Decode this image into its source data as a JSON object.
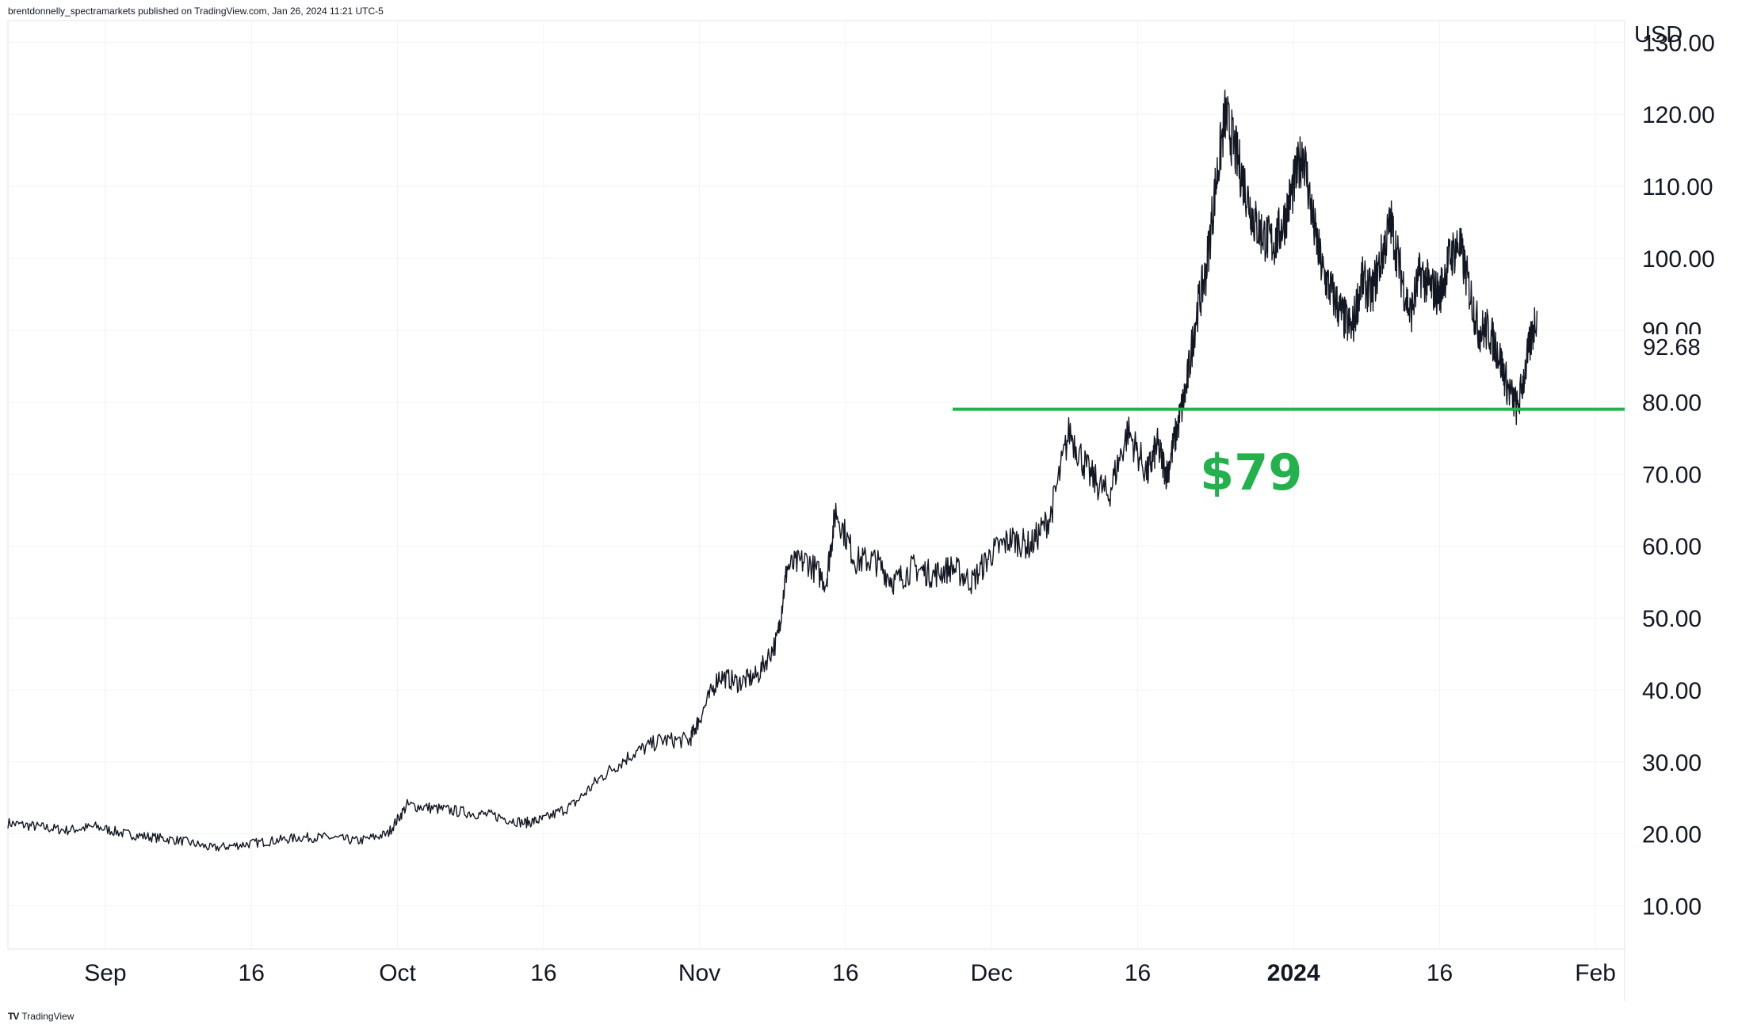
{
  "header": {
    "text": "brentdonnelly_spectramarkets published on TradingView.com, Jan 26, 2024 11:21 UTC-5"
  },
  "footer": {
    "brand": "TradingView",
    "logo_glyph": "TV"
  },
  "axis": {
    "currency": "USD"
  },
  "price_label": {
    "value": "92.68"
  },
  "annotation": {
    "text": "$79",
    "color": "#22b14c"
  },
  "colors": {
    "line": "#131722",
    "grid": "#f0f3fa",
    "support": "#22b14c",
    "axis_text": "#131722"
  },
  "chart_data": {
    "type": "line",
    "title": "",
    "xlabel": "",
    "ylabel": "",
    "currency": "USD",
    "ylim": [
      4,
      133
    ],
    "yticks": [
      10,
      20,
      30,
      40,
      50,
      60,
      70,
      80,
      90,
      100,
      110,
      120,
      130
    ],
    "ytick_labels": [
      "10.00",
      "20.00",
      "30.00",
      "40.00",
      "50.00",
      "60.00",
      "70.00",
      "80.00",
      "90.00",
      "100.00",
      "110.00",
      "120.00",
      "130.00"
    ],
    "xlim": [
      "2023-08-22",
      "2024-02-04"
    ],
    "xticks": [
      {
        "date": "2023-09-01",
        "label": "Sep",
        "bold": false
      },
      {
        "date": "2023-09-16",
        "label": "16",
        "bold": false
      },
      {
        "date": "2023-10-01",
        "label": "Oct",
        "bold": false
      },
      {
        "date": "2023-10-16",
        "label": "16",
        "bold": false
      },
      {
        "date": "2023-11-01",
        "label": "Nov",
        "bold": false
      },
      {
        "date": "2023-11-16",
        "label": "16",
        "bold": false
      },
      {
        "date": "2023-12-01",
        "label": "Dec",
        "bold": false
      },
      {
        "date": "2023-12-16",
        "label": "16",
        "bold": false
      },
      {
        "date": "2024-01-01",
        "label": "2024",
        "bold": true
      },
      {
        "date": "2024-01-16",
        "label": "16",
        "bold": false
      },
      {
        "date": "2024-02-01",
        "label": "Feb",
        "bold": false
      }
    ],
    "last_price": 92.68,
    "support_level": {
      "value": 79,
      "label": "$79",
      "from": "2023-11-27",
      "to": "2024-02-04"
    },
    "series": [
      {
        "x": [
          "2023-08-22",
          "2023-08-25",
          "2023-08-28",
          "2023-08-31",
          "2023-09-03",
          "2023-09-06",
          "2023-09-09",
          "2023-09-12",
          "2023-09-15",
          "2023-09-18",
          "2023-09-21",
          "2023-09-24",
          "2023-09-27",
          "2023-09-30",
          "2023-10-02",
          "2023-10-05",
          "2023-10-08",
          "2023-10-11",
          "2023-10-14",
          "2023-10-16",
          "2023-10-19",
          "2023-10-22",
          "2023-10-25",
          "2023-10-28",
          "2023-10-31",
          "2023-11-01",
          "2023-11-03",
          "2023-11-05",
          "2023-11-07",
          "2023-11-09",
          "2023-11-10",
          "2023-11-12",
          "2023-11-14",
          "2023-11-15",
          "2023-11-17",
          "2023-11-19",
          "2023-11-21",
          "2023-11-23",
          "2023-11-25",
          "2023-11-27",
          "2023-11-29",
          "2023-12-01",
          "2023-12-03",
          "2023-12-05",
          "2023-12-07",
          "2023-12-09",
          "2023-12-11",
          "2023-12-13",
          "2023-12-15",
          "2023-12-17",
          "2023-12-18",
          "2023-12-19",
          "2023-12-20",
          "2023-12-21",
          "2023-12-22",
          "2023-12-23",
          "2023-12-24",
          "2023-12-25",
          "2023-12-26",
          "2023-12-27",
          "2023-12-28",
          "2023-12-29",
          "2023-12-30",
          "2023-12-31",
          "2024-01-01",
          "2024-01-02",
          "2024-01-03",
          "2024-01-04",
          "2024-01-05",
          "2024-01-06",
          "2024-01-07",
          "2024-01-08",
          "2024-01-09",
          "2024-01-10",
          "2024-01-11",
          "2024-01-12",
          "2024-01-13",
          "2024-01-14",
          "2024-01-15",
          "2024-01-16",
          "2024-01-17",
          "2024-01-18",
          "2024-01-19",
          "2024-01-20",
          "2024-01-21",
          "2024-01-22",
          "2024-01-23",
          "2024-01-24",
          "2024-01-25",
          "2024-01-26"
        ],
        "y": [
          21.5,
          21,
          20.5,
          21,
          20,
          19.5,
          19,
          18,
          18.5,
          19,
          19.5,
          19.5,
          19,
          20,
          24,
          23.5,
          23,
          22.5,
          21.5,
          22,
          24,
          28,
          31,
          33,
          33,
          36,
          42,
          41,
          42,
          47,
          57,
          58,
          55,
          65,
          58,
          58,
          55,
          57,
          56,
          57,
          55,
          59,
          61,
          60,
          64,
          76,
          70,
          67,
          76,
          70,
          74,
          70,
          76,
          82,
          92,
          98,
          110,
          120,
          115,
          110,
          105,
          103,
          102,
          105,
          110,
          115,
          105,
          98,
          95,
          92,
          90,
          97,
          95,
          100,
          105,
          98,
          92,
          98,
          96,
          95,
          100,
          102,
          96,
          90,
          90,
          87,
          82,
          79,
          86,
          92.68
        ]
      }
    ]
  }
}
